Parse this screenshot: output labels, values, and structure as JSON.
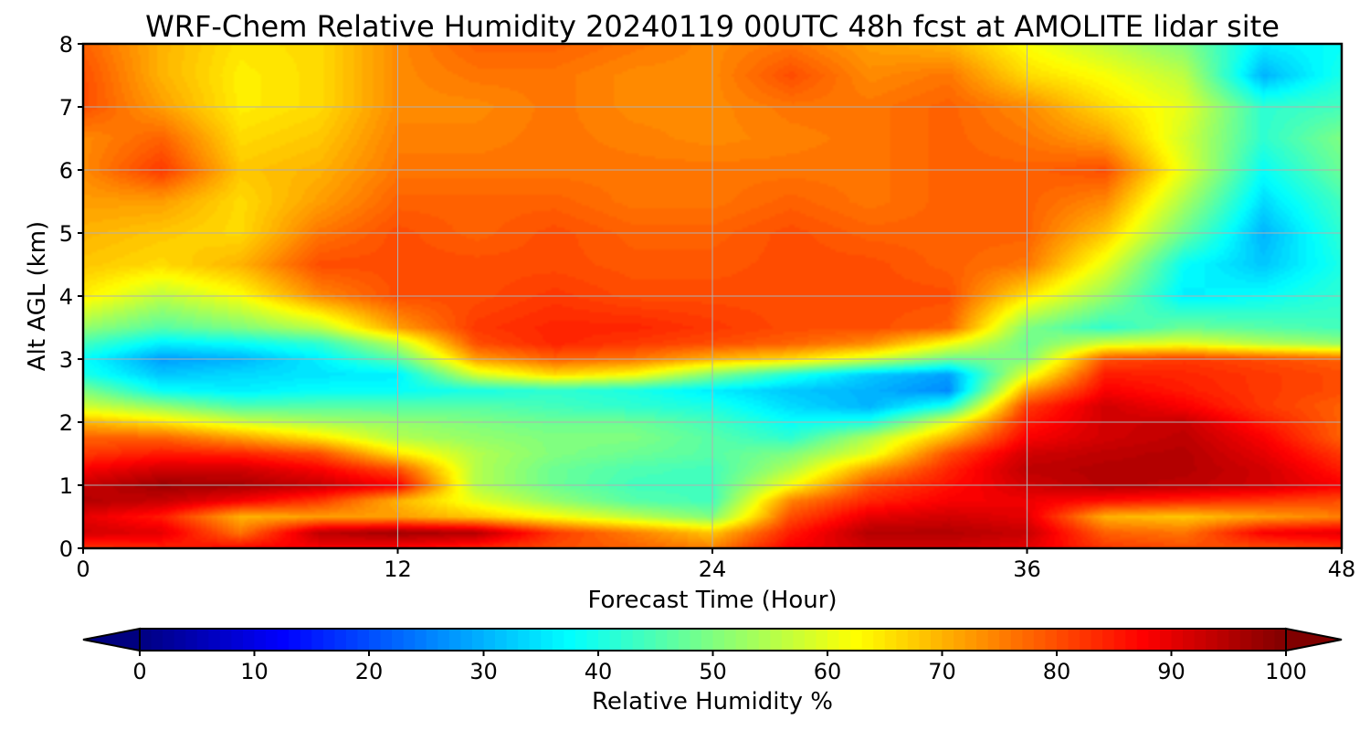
{
  "chart_data": {
    "type": "heatmap",
    "title": "WRF-Chem Relative Humidity 20240119 00UTC 48h fcst at AMOLITE lidar site",
    "xlabel": "Forecast Time (Hour)",
    "ylabel": "Alt AGL (km)",
    "xlim": [
      0,
      48
    ],
    "ylim": [
      0,
      8
    ],
    "x_ticks": [
      0,
      12,
      24,
      36,
      48
    ],
    "y_ticks": [
      0,
      1,
      2,
      3,
      4,
      5,
      6,
      7,
      8
    ],
    "grid": true,
    "colormap": "jet",
    "x": [
      0,
      3,
      6,
      9,
      12,
      15,
      18,
      21,
      24,
      27,
      30,
      33,
      36,
      39,
      42,
      45,
      48
    ],
    "y": [
      0,
      0.25,
      0.5,
      0.75,
      1,
      1.25,
      1.5,
      1.75,
      2,
      2.25,
      2.5,
      2.75,
      3,
      3.25,
      3.5,
      4,
      4.5,
      5,
      5.5,
      6,
      6.5,
      7,
      7.5,
      8
    ],
    "z": [
      [
        82,
        84,
        87,
        88,
        87,
        84,
        80,
        78,
        75,
        88,
        92,
        92,
        90,
        82,
        80,
        80,
        82
      ],
      [
        92,
        90,
        76,
        94,
        97,
        95,
        82,
        75,
        68,
        85,
        95,
        95,
        93,
        78,
        76,
        88,
        90
      ],
      [
        90,
        85,
        70,
        72,
        72,
        68,
        62,
        56,
        50,
        80,
        90,
        92,
        90,
        70,
        68,
        72,
        75
      ],
      [
        95,
        93,
        88,
        82,
        70,
        60,
        52,
        46,
        44,
        75,
        84,
        88,
        89,
        86,
        84,
        82,
        80
      ],
      [
        93,
        97,
        96,
        93,
        88,
        55,
        48,
        44,
        44,
        62,
        80,
        86,
        92,
        95,
        94,
        92,
        88
      ],
      [
        88,
        92,
        92,
        88,
        80,
        55,
        48,
        45,
        44,
        55,
        72,
        84,
        94,
        95,
        95,
        92,
        85
      ],
      [
        82,
        85,
        84,
        80,
        65,
        55,
        50,
        48,
        46,
        50,
        60,
        80,
        92,
        94,
        95,
        90,
        82
      ],
      [
        78,
        78,
        72,
        65,
        55,
        52,
        50,
        50,
        46,
        42,
        55,
        70,
        88,
        92,
        94,
        88,
        78
      ],
      [
        70,
        65,
        58,
        54,
        52,
        50,
        48,
        48,
        44,
        38,
        40,
        60,
        85,
        92,
        93,
        85,
        78
      ],
      [
        58,
        52,
        45,
        46,
        46,
        46,
        44,
        42,
        40,
        34,
        30,
        40,
        82,
        92,
        88,
        82,
        78
      ],
      [
        50,
        38,
        36,
        38,
        38,
        40,
        42,
        40,
        36,
        32,
        30,
        26,
        72,
        88,
        85,
        82,
        80
      ],
      [
        40,
        32,
        34,
        35,
        36,
        58,
        66,
        62,
        50,
        40,
        32,
        28,
        60,
        85,
        84,
        82,
        80
      ],
      [
        38,
        28,
        30,
        36,
        46,
        72,
        78,
        76,
        70,
        66,
        58,
        48,
        50,
        80,
        82,
        80,
        78
      ],
      [
        44,
        36,
        38,
        42,
        56,
        80,
        84,
        82,
        80,
        78,
        74,
        62,
        48,
        58,
        60,
        55,
        52
      ],
      [
        52,
        46,
        50,
        56,
        72,
        82,
        84,
        84,
        82,
        80,
        80,
        78,
        50,
        42,
        48,
        46,
        44
      ],
      [
        64,
        56,
        62,
        74,
        80,
        80,
        82,
        80,
        80,
        80,
        80,
        80,
        65,
        52,
        36,
        38,
        42
      ],
      [
        68,
        66,
        70,
        80,
        80,
        80,
        80,
        79,
        79,
        80,
        80,
        78,
        76,
        60,
        38,
        32,
        40
      ],
      [
        70,
        68,
        66,
        76,
        80,
        78,
        80,
        78,
        78,
        80,
        78,
        78,
        78,
        68,
        48,
        30,
        42
      ],
      [
        72,
        72,
        66,
        72,
        78,
        78,
        78,
        76,
        76,
        78,
        76,
        78,
        78,
        74,
        54,
        34,
        44
      ],
      [
        74,
        82,
        68,
        70,
        76,
        76,
        76,
        76,
        76,
        76,
        76,
        78,
        78,
        80,
        60,
        38,
        48
      ],
      [
        74,
        78,
        66,
        68,
        75,
        75,
        76,
        75,
        74,
        75,
        76,
        78,
        76,
        72,
        58,
        42,
        50
      ],
      [
        80,
        72,
        64,
        66,
        74,
        74,
        76,
        74,
        74,
        76,
        76,
        78,
        74,
        66,
        60,
        42,
        44
      ],
      [
        80,
        70,
        64,
        66,
        74,
        76,
        76,
        74,
        74,
        80,
        74,
        76,
        66,
        62,
        56,
        30,
        40
      ],
      [
        78,
        70,
        65,
        66,
        74,
        78,
        78,
        76,
        74,
        76,
        72,
        70,
        62,
        56,
        50,
        36,
        38
      ]
    ],
    "colorbar": {
      "label": "Relative Humidity %",
      "ticks": [
        0,
        10,
        20,
        30,
        40,
        50,
        60,
        70,
        80,
        90,
        100
      ],
      "range": [
        0,
        100
      ],
      "extend": "both",
      "orientation": "horizontal"
    }
  }
}
